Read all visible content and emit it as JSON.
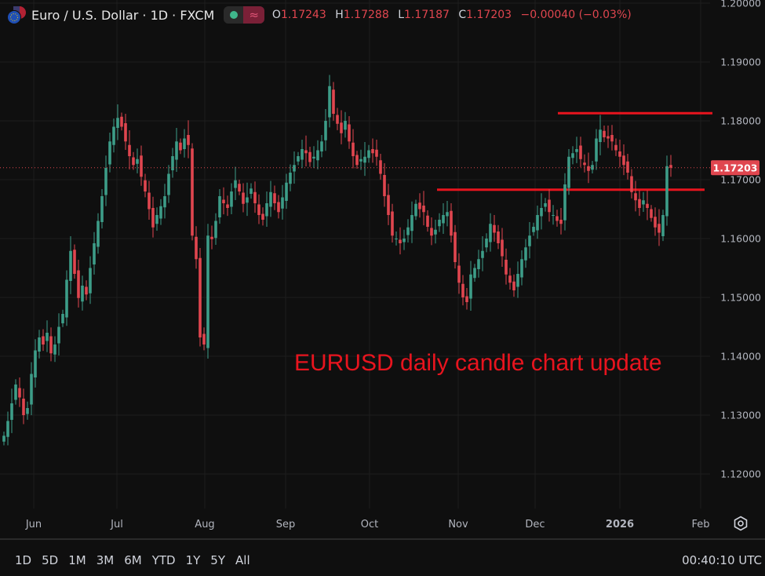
{
  "header": {
    "title": "Euro / U.S. Dollar · 1D · FXCM",
    "ohlc": {
      "o_label": "O",
      "o": "1.17243",
      "h_label": "H",
      "h": "1.17288",
      "l_label": "L",
      "l": "1.17187",
      "c_label": "C",
      "c": "1.17203",
      "change": "−0.00040 (−0.03%)"
    },
    "indicator_icon": "approx-wave-icon"
  },
  "chart_data": {
    "type": "candlestick",
    "symbol": "EURUSD",
    "interval": "1D",
    "ylim": [
      1.1141,
      1.2
    ],
    "y_ticks": [
      "1.20000",
      "1.19000",
      "1.18000",
      "1.17000",
      "1.16000",
      "1.15000",
      "1.14000",
      "1.13000",
      "1.12000"
    ],
    "x_ticks": [
      "Jun",
      "Jul",
      "Aug",
      "Sep",
      "Oct",
      "Nov",
      "Dec",
      "2026",
      "Feb"
    ],
    "grid": true,
    "closes": [
      1.1265,
      1.129,
      1.132,
      1.1352,
      1.133,
      1.13,
      1.1312,
      1.137,
      1.141,
      1.1432,
      1.142,
      1.144,
      1.1405,
      1.142,
      1.145,
      1.1472,
      1.153,
      1.1579,
      1.154,
      1.1499,
      1.152,
      1.1505,
      1.155,
      1.1592,
      1.163,
      1.1672,
      1.172,
      1.1765,
      1.179,
      1.1805,
      1.179,
      1.1765,
      1.174,
      1.1725,
      1.1735,
      1.1705,
      1.168,
      1.165,
      1.1619,
      1.164,
      1.1655,
      1.1672,
      1.171,
      1.174,
      1.1765,
      1.175,
      1.177,
      1.1759,
      1.1605,
      1.1565,
      1.1432,
      1.142,
      1.1605,
      1.1599,
      1.163,
      1.1672,
      1.166,
      1.1652,
      1.168,
      1.1699,
      1.168,
      1.1659,
      1.167,
      1.1685,
      1.166,
      1.164,
      1.1632,
      1.166,
      1.1679,
      1.166,
      1.1645,
      1.167,
      1.1695,
      1.1712,
      1.1725,
      1.174,
      1.1752,
      1.1745,
      1.173,
      1.1739,
      1.175,
      1.1765,
      1.18,
      1.1859,
      1.1812,
      1.1795,
      1.1779,
      1.18,
      1.1765,
      1.174,
      1.1725,
      1.1735,
      1.1739,
      1.175,
      1.1745,
      1.1739,
      1.171,
      1.1672,
      1.164,
      1.1605,
      1.16,
      1.1592,
      1.16,
      1.1619,
      1.164,
      1.1659,
      1.165,
      1.1645,
      1.162,
      1.1605,
      1.1615,
      1.1632,
      1.164,
      1.1645,
      1.1605,
      1.156,
      1.1525,
      1.15,
      1.1492,
      1.1539,
      1.155,
      1.1565,
      1.1579,
      1.16,
      1.1625,
      1.161,
      1.1592,
      1.157,
      1.1539,
      1.1525,
      1.1512,
      1.154,
      1.1565,
      1.1585,
      1.1605,
      1.162,
      1.164,
      1.1652,
      1.166,
      1.1645,
      1.164,
      1.163,
      1.1625,
      1.1692,
      1.1739,
      1.1745,
      1.1752,
      1.1735,
      1.1725,
      1.1715,
      1.1725,
      1.177,
      1.1785,
      1.1772,
      1.177,
      1.1765,
      1.175,
      1.1739,
      1.1725,
      1.1712,
      1.1679,
      1.1665,
      1.1652,
      1.1665,
      1.1652,
      1.1635,
      1.1619,
      1.161,
      1.164,
      1.1723,
      1.17203
    ],
    "last_price": "1.17203",
    "horizontal_lines": [
      1.1813,
      1.1683
    ],
    "annotation": "EURUSD daily candle chart update",
    "colors": {
      "up": "#3d9d88",
      "down": "#e0464f",
      "line": "#e8141e",
      "background": "#0f0f0f",
      "grid": "#1e1e1e"
    }
  },
  "footer": {
    "timeframes": [
      "1D",
      "5D",
      "1M",
      "3M",
      "6M",
      "YTD",
      "1Y",
      "5Y",
      "All"
    ],
    "clock": "00:40:10 UTC"
  }
}
